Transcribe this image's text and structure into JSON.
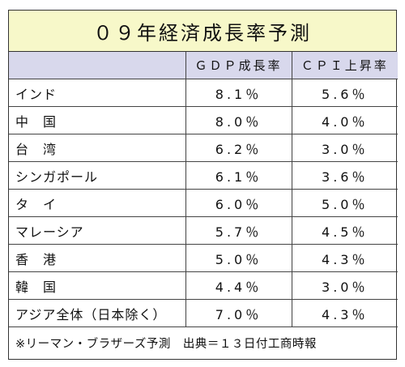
{
  "title": "０９年経済成長率予測",
  "headers": [
    "",
    "ＧＤＰ成長率",
    "ＣＰＩ上昇率"
  ],
  "rows": [
    {
      "name": "インド",
      "gdp": "8.1％",
      "cpi": "5.6％"
    },
    {
      "name": "中　国",
      "gdp": "8.0％",
      "cpi": "4.0％"
    },
    {
      "name": "台　湾",
      "gdp": "6.2％",
      "cpi": "3.0％"
    },
    {
      "name": "シンガポール",
      "gdp": "6.1％",
      "cpi": "3.6％"
    },
    {
      "name": "タ　イ",
      "gdp": "6.0％",
      "cpi": "5.0％"
    },
    {
      "name": "マレーシア",
      "gdp": "5.7％",
      "cpi": "4.5％"
    },
    {
      "name": "香　港",
      "gdp": "5.0％",
      "cpi": "4.3％"
    },
    {
      "name": "韓　国",
      "gdp": "4.4％",
      "cpi": "3.0％"
    },
    {
      "name": "アジア全体（日本除く）",
      "gdp": "7.0％",
      "cpi": "4.3％"
    }
  ],
  "footnote": "※リーマン・ブラザーズ予測　出典＝１３日付工商時報",
  "colors": {
    "title_bg": "#f7f8c9",
    "header_bg": "#d8d8ec",
    "border": "#333333"
  }
}
